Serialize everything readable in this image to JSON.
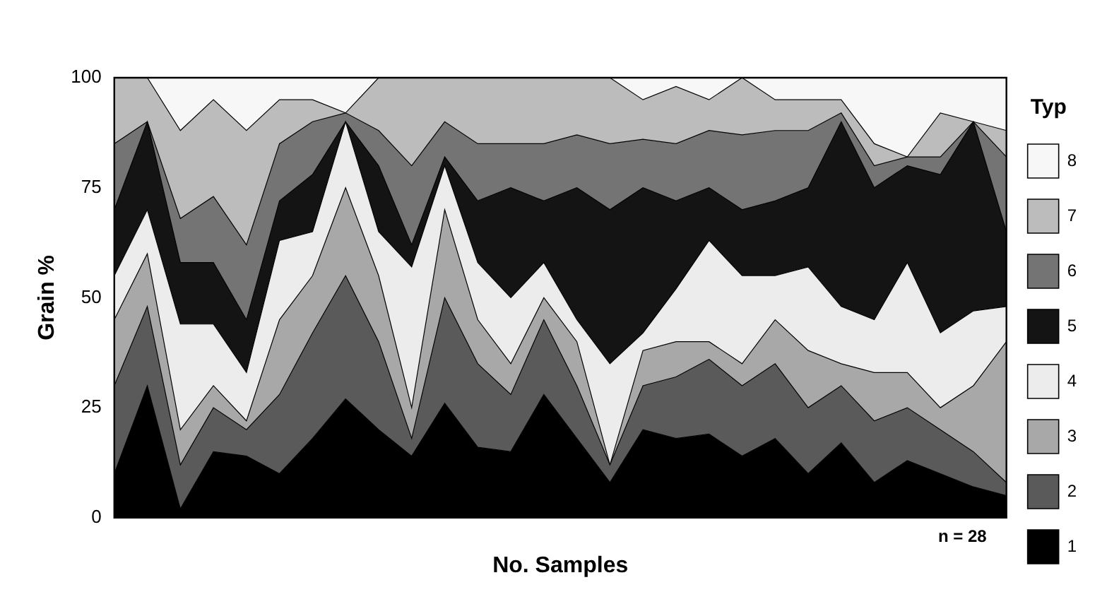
{
  "chart_data": {
    "type": "area",
    "stacked": true,
    "xlabel": "No. Samples",
    "ylabel": "Grain %",
    "legend_title": "Typ",
    "legend": "right",
    "annotations": [
      "n = 28"
    ],
    "categories": [
      null,
      null,
      null,
      null,
      null,
      null,
      null,
      null,
      null,
      null,
      null,
      null,
      null,
      null,
      null,
      null,
      null,
      null,
      null,
      null,
      null,
      null,
      null,
      null,
      null,
      null,
      null,
      null
    ],
    "ylim": [
      0,
      100
    ],
    "yticks": [
      0,
      25,
      50,
      75,
      100
    ],
    "grid": false,
    "series": [
      {
        "name": "1",
        "color": "#000000",
        "values": [
          10,
          30,
          2,
          15,
          14,
          10,
          18,
          27,
          20,
          14,
          26,
          16,
          15,
          28,
          18,
          8,
          20,
          18,
          19,
          14,
          18,
          10,
          17,
          8,
          13,
          10,
          7,
          5
        ]
      },
      {
        "name": "2",
        "color": "#5a5a5a",
        "values": [
          20,
          18,
          10,
          10,
          6,
          18,
          24,
          28,
          20,
          4,
          24,
          19,
          13,
          17,
          12,
          4,
          10,
          14,
          17,
          16,
          17,
          15,
          13,
          14,
          12,
          10,
          8,
          3
        ]
      },
      {
        "name": "3",
        "color": "#a8a8a8",
        "values": [
          15,
          12,
          8,
          5,
          2,
          17,
          13,
          20,
          15,
          7,
          20,
          10,
          7,
          5,
          10,
          0,
          8,
          8,
          4,
          5,
          10,
          13,
          5,
          11,
          8,
          5,
          15,
          32
        ]
      },
      {
        "name": "4",
        "color": "#ececec",
        "values": [
          10,
          10,
          24,
          14,
          11,
          18,
          10,
          15,
          10,
          32,
          10,
          13,
          15,
          8,
          5,
          23,
          4,
          12,
          23,
          20,
          10,
          19,
          13,
          12,
          25,
          17,
          17,
          8
        ]
      },
      {
        "name": "5",
        "color": "#141414",
        "values": [
          15,
          20,
          14,
          14,
          12,
          9,
          13,
          0,
          15,
          5,
          2,
          14,
          25,
          14,
          30,
          35,
          33,
          20,
          12,
          15,
          17,
          18,
          42,
          30,
          22,
          36,
          43,
          17
        ]
      },
      {
        "name": "6",
        "color": "#747474",
        "values": [
          15,
          0,
          10,
          15,
          17,
          13,
          12,
          2,
          8,
          18,
          8,
          13,
          10,
          13,
          12,
          15,
          11,
          13,
          13,
          17,
          16,
          13,
          2,
          5,
          2,
          4,
          0,
          17
        ]
      },
      {
        "name": "7",
        "color": "#bcbcbc",
        "values": [
          15,
          10,
          20,
          22,
          26,
          10,
          5,
          0,
          12,
          20,
          10,
          15,
          15,
          15,
          13,
          15,
          9,
          13,
          7,
          13,
          7,
          7,
          3,
          5,
          0,
          10,
          0,
          6
        ]
      },
      {
        "name": "8",
        "color": "#f7f7f7",
        "values": [
          0,
          0,
          12,
          5,
          12,
          5,
          5,
          8,
          0,
          0,
          0,
          0,
          0,
          0,
          0,
          0,
          5,
          2,
          5,
          0,
          5,
          5,
          5,
          15,
          18,
          8,
          10,
          12
        ]
      }
    ]
  }
}
